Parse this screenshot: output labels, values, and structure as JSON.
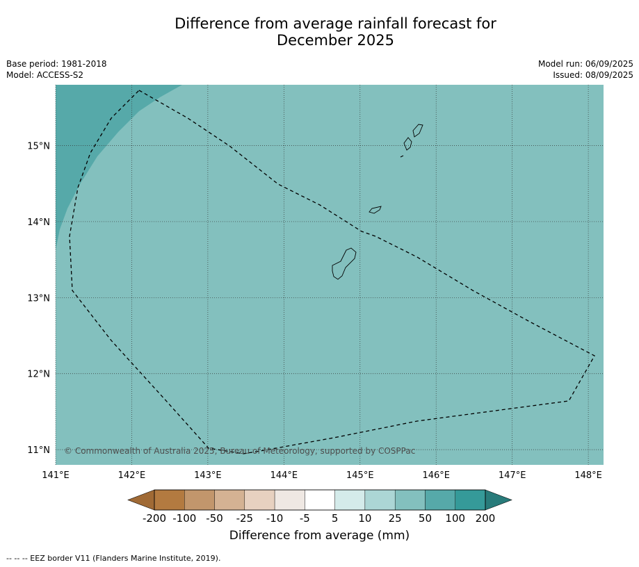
{
  "title_line1": "Difference from average rainfall forecast for",
  "title_line2": "December 2025",
  "meta_left": [
    "Base period: 1981-2018",
    "Model: ACCESS-S2"
  ],
  "meta_right": [
    "Model run: 06/09/2025",
    "Issued: 08/09/2025"
  ],
  "map": {
    "lon_labels": [
      "141°E",
      "142°E",
      "143°E",
      "144°E",
      "145°E",
      "146°E",
      "147°E",
      "148°E"
    ],
    "lat_labels": [
      "15°N",
      "14°N",
      "13°N",
      "12°N",
      "11°N"
    ],
    "lons": [
      141,
      142,
      143,
      144,
      145,
      146,
      147,
      148
    ],
    "lats": [
      15,
      14,
      13,
      12,
      11
    ],
    "extent": {
      "lon_min": 141.0,
      "lon_max": 148.2,
      "lat_min": 10.8,
      "lat_max": 15.8
    },
    "background_category": "25 to 50",
    "copyright": "© Commonwealth of Australia 2025, Bureau of Meteorology, supported by COSPPac"
  },
  "colorbar": {
    "labels": [
      "-200",
      "-100",
      "-50",
      "-25",
      "-10",
      "-5",
      "5",
      "10",
      "25",
      "50",
      "100",
      "200"
    ],
    "colors": [
      "#a06a35",
      "#b37a40",
      "#c2966c",
      "#d4b293",
      "#e7d1c0",
      "#efe8e3",
      "#ffffff",
      "#d4ebea",
      "#acd6d5",
      "#83c0be",
      "#56a9a9",
      "#359a99",
      "#287b7a"
    ],
    "title": "Difference from average (mm)"
  },
  "footer": "--  --  -- EEZ border V11 (Flanders Marine Institute, 2019)."
}
